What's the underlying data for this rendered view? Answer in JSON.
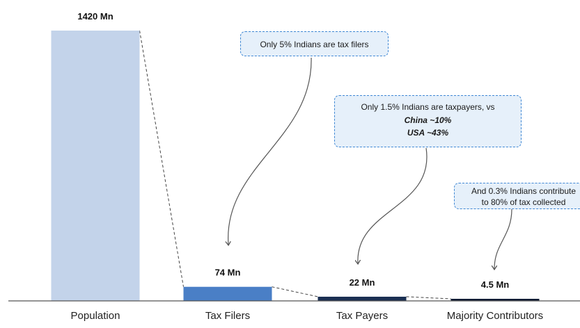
{
  "chart_data": {
    "type": "bar",
    "unit": "Mn",
    "categories": [
      "Population",
      "Tax Filers",
      "Tax Payers",
      "Majority Contributors"
    ],
    "values": [
      1420,
      74,
      22,
      4.5
    ],
    "value_labels": [
      "1420 Mn",
      "74 Mn",
      "22 Mn",
      "4.5 Mn"
    ],
    "colors": [
      "#c3d3ea",
      "#4a7fc6",
      "#1a2f52",
      "#0c1a33"
    ],
    "connectors": "dashed"
  },
  "annotations": [
    {
      "lines": [
        "Only 5% Indians are tax filers"
      ],
      "points_to": "Tax Filers"
    },
    {
      "lines": [
        "Only 1.5% Indians  are taxpayers, vs",
        "China ~10%",
        "USA ~43%"
      ],
      "points_to": "Tax Payers"
    },
    {
      "lines": [
        "And 0.3% Indians contribute",
        "to 80% of tax collected"
      ],
      "points_to": "Majority Contributors"
    }
  ],
  "colors": {
    "axis": "#555555",
    "callout_fill": "#e6f0fa",
    "callout_border": "#3f87d4",
    "arrow": "#555555"
  }
}
